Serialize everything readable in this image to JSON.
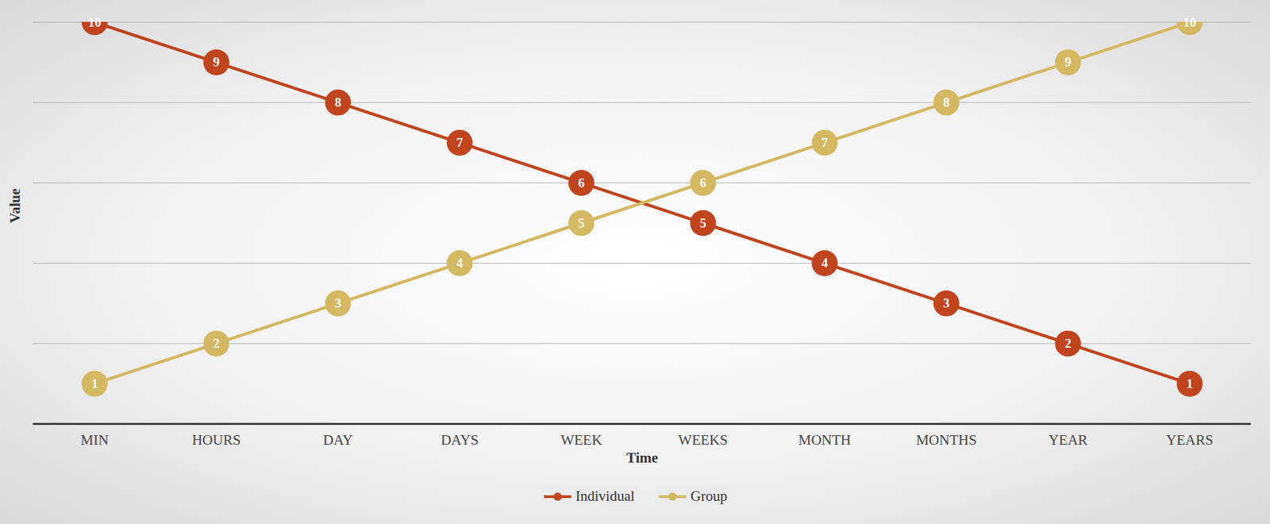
{
  "chart_data": {
    "type": "line",
    "x_label": "Time",
    "y_label": "Value",
    "categories": [
      "MIN",
      "HOURS",
      "DAY",
      "DAYS",
      "WEEK",
      "WEEKS",
      "MONTH",
      "MONTHS",
      "YEAR",
      "YEARS"
    ],
    "series": [
      {
        "name": "Individual",
        "color": "#c0441e",
        "values": [
          10,
          9,
          8,
          7,
          6,
          5,
          4,
          3,
          2,
          1
        ]
      },
      {
        "name": "Group",
        "color": "#d4b862",
        "values": [
          1,
          2,
          3,
          4,
          5,
          6,
          7,
          8,
          9,
          10
        ]
      }
    ],
    "ylim": [
      0,
      10
    ],
    "yticks": [
      0,
      2,
      4,
      6,
      8,
      10
    ],
    "grid": true,
    "tick_labels": "x",
    "data_labels": true,
    "marker": "circle",
    "legend": "bottom"
  }
}
